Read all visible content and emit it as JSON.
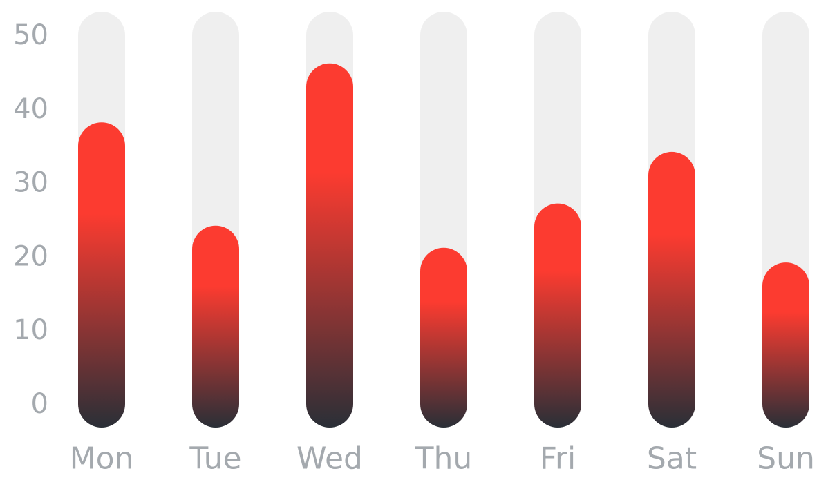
{
  "chart_data": {
    "type": "bar",
    "categories": [
      "Mon",
      "Tue",
      "Wed",
      "Thu",
      "Fri",
      "Sat",
      "Sun"
    ],
    "values": [
      35,
      21,
      43,
      18,
      24,
      31,
      16
    ],
    "ylim": [
      0,
      50
    ],
    "yticks": [
      "0",
      "10",
      "20",
      "30",
      "40",
      "50"
    ],
    "grid": false,
    "legend": "none",
    "colors": {
      "track": "#efefef",
      "bar_top": "#fc3b30",
      "bar_bottom": "#2a2f37",
      "label": "#a4a9ae"
    }
  }
}
